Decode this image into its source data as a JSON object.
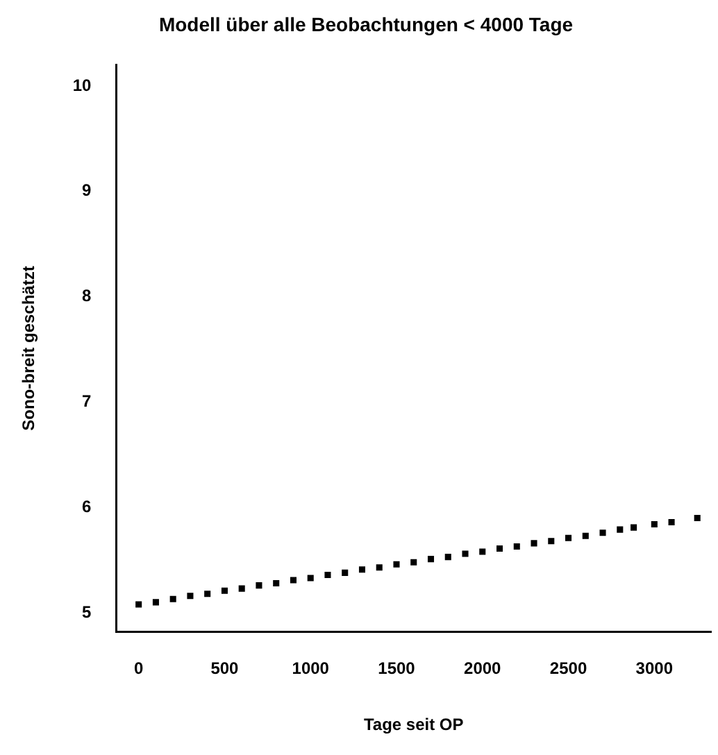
{
  "chart_data": {
    "type": "scatter",
    "title": "Modell über alle Beobachtungen < 4000 Tage",
    "xlabel": "Tage seit OP",
    "ylabel": "Sono-breit geschätzt",
    "x": [
      0,
      100,
      200,
      300,
      400,
      500,
      600,
      700,
      800,
      900,
      1000,
      1100,
      1200,
      1300,
      1400,
      1500,
      1600,
      1700,
      1800,
      1900,
      2000,
      2100,
      2200,
      2300,
      2400,
      2500,
      2600,
      2700,
      2800,
      2880,
      3000,
      3100,
      3250
    ],
    "series": [
      {
        "color": "#000000",
        "values": [
          5.08,
          5.1,
          5.13,
          5.16,
          5.18,
          5.21,
          5.23,
          5.26,
          5.28,
          5.31,
          5.33,
          5.36,
          5.38,
          5.41,
          5.43,
          5.46,
          5.48,
          5.51,
          5.53,
          5.56,
          5.58,
          5.61,
          5.63,
          5.66,
          5.68,
          5.71,
          5.73,
          5.76,
          5.79,
          5.81,
          5.84,
          5.86,
          5.9
        ]
      }
    ],
    "xlim": [
      -130,
      3330
    ],
    "xticks": [
      0,
      500,
      1000,
      1500,
      2000,
      2500,
      3000
    ],
    "ylim": [
      4.82,
      10.2
    ],
    "yticks": [
      5,
      6,
      7,
      8,
      9,
      10
    ],
    "grid": false,
    "legend": false,
    "marker": "square"
  }
}
